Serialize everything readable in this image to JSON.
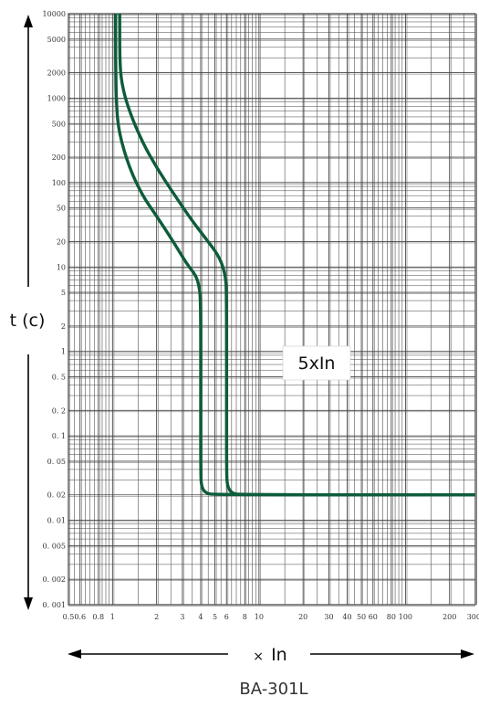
{
  "chart_data": {
    "type": "line",
    "title": "",
    "caption": "BA-301L",
    "xlabel_prefix": "×",
    "xlabel": "In",
    "ylabel": "t (c)",
    "annotation": "5xIn",
    "x_scale": "log",
    "y_scale": "log",
    "xlim": [
      0.5,
      300
    ],
    "ylim": [
      0.001,
      10000
    ],
    "grid": true,
    "legend": "none",
    "x_ticks": [
      0.5,
      0.6,
      0.8,
      1,
      2,
      3,
      4,
      5,
      6,
      8,
      10,
      20,
      30,
      40,
      50,
      60,
      80,
      100,
      200,
      300
    ],
    "x_tick_labels": [
      "0.5",
      "0.6",
      "0.8",
      "1",
      "2",
      "3",
      "4",
      "5",
      "6",
      "8",
      "10",
      "20",
      "30",
      "40",
      "50",
      "60",
      "80",
      "100",
      "200",
      "300"
    ],
    "y_ticks": [
      10000,
      5000,
      2000,
      1000,
      500,
      200,
      100,
      50,
      20,
      10,
      5,
      2,
      1,
      0.5,
      0.2,
      0.1,
      0.05,
      0.02,
      0.01,
      0.005,
      0.002,
      0.001
    ],
    "y_tick_labels": [
      "10000",
      "5000",
      "2000",
      "1000",
      "500",
      "200",
      "100",
      "50",
      "20",
      "10",
      "5",
      "2",
      "1",
      "0. 5",
      "0. 2",
      "0. 1",
      "0. 05",
      "0. 02",
      "0. 01",
      "0. 005",
      "0. 002",
      "0. 001"
    ],
    "line_color": "#0d5c3a",
    "series": [
      {
        "x": [
          1.05,
          1.05,
          1.06,
          1.1,
          1.3,
          1.6,
          2.0,
          2.6,
          3.2,
          3.7,
          3.9,
          4.0,
          4.0,
          4.0,
          4.05,
          4.3,
          5.0,
          300
        ],
        "y": [
          10000,
          3000,
          900,
          400,
          150,
          70,
          40,
          20,
          11,
          8,
          6,
          4,
          0.3,
          0.035,
          0.025,
          0.021,
          0.02,
          0.02
        ]
      },
      {
        "x": [
          1.12,
          1.12,
          1.15,
          1.3,
          1.6,
          2.0,
          2.6,
          3.5,
          4.5,
          5.4,
          5.9,
          6.0,
          6.0,
          6.0,
          6.1,
          6.5,
          7.5,
          300
        ],
        "y": [
          10000,
          3000,
          1500,
          700,
          300,
          150,
          75,
          35,
          20,
          13,
          8,
          5,
          0.3,
          0.035,
          0.025,
          0.021,
          0.02,
          0.02
        ]
      }
    ]
  }
}
